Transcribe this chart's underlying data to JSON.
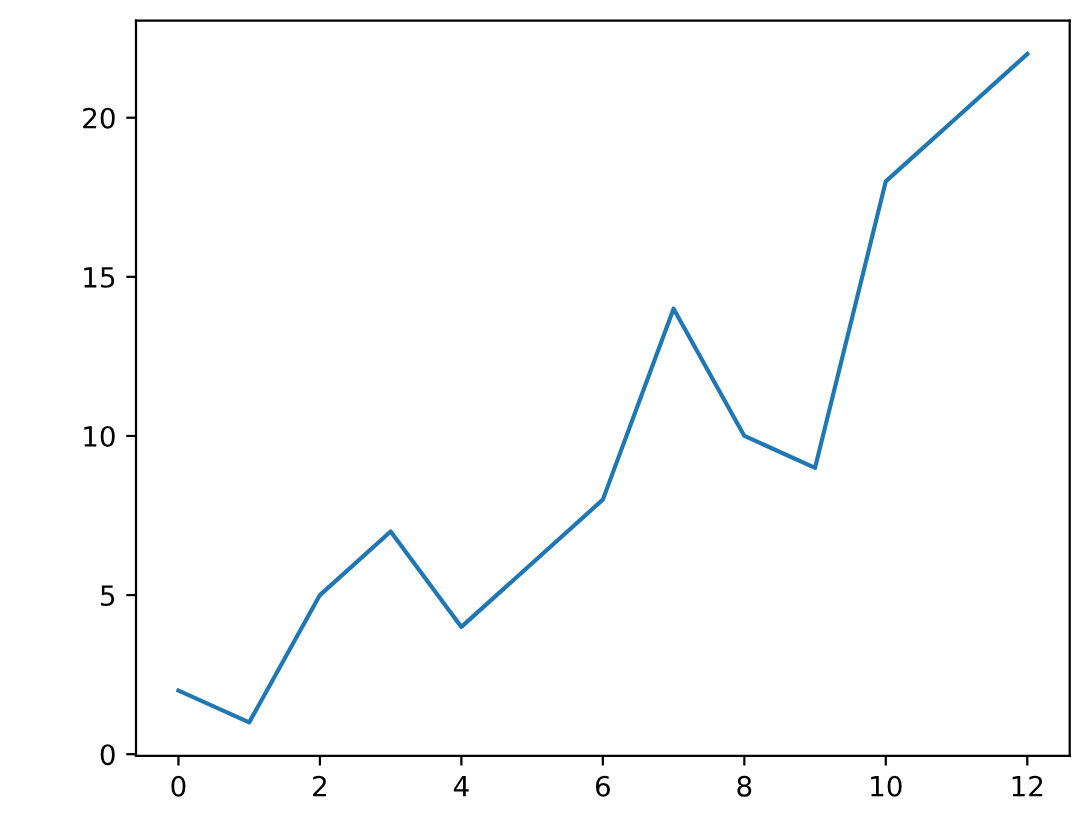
{
  "chart_data": {
    "type": "line",
    "x": [
      0,
      1,
      2,
      3,
      4,
      5,
      6,
      7,
      8,
      9,
      10,
      11,
      12
    ],
    "series": [
      {
        "color": "#1f77b4",
        "values": [
          2,
          1,
          5,
          7,
          4,
          6,
          8,
          14,
          10,
          9,
          18,
          20,
          22
        ]
      }
    ],
    "xlim": [
      -0.6,
      12.6
    ],
    "ylim": [
      -0.05,
      23.05
    ],
    "xticks": [
      0,
      2,
      4,
      6,
      8,
      10,
      12
    ],
    "yticks": [
      0,
      5,
      10,
      15,
      20
    ],
    "grid": false,
    "marker": "none",
    "line_style": "solid"
  }
}
